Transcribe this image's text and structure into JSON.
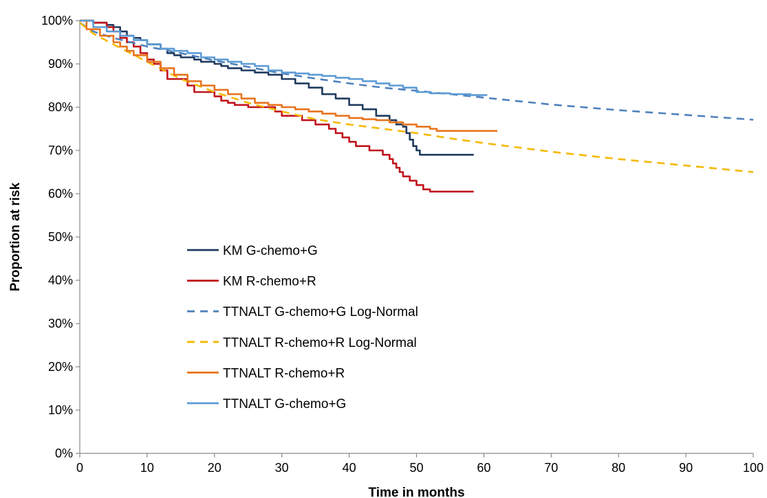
{
  "chart_data": {
    "type": "line",
    "title": "",
    "xlabel": "Time in months",
    "ylabel": "Proportion at risk",
    "xlim": [
      0,
      100
    ],
    "ylim": [
      0,
      1
    ],
    "x_ticks": [
      0,
      10,
      20,
      30,
      40,
      50,
      60,
      70,
      80,
      90,
      100
    ],
    "x_tick_labels": [
      "0",
      "10",
      "20",
      "30",
      "40",
      "50",
      "60",
      "70",
      "80",
      "90",
      "100"
    ],
    "y_ticks": [
      0,
      0.1,
      0.2,
      0.3,
      0.4,
      0.5,
      0.6,
      0.7,
      0.8,
      0.9,
      1.0
    ],
    "y_tick_labels": [
      "0%",
      "10%",
      "20%",
      "30%",
      "40%",
      "50%",
      "60%",
      "70%",
      "80%",
      "90%",
      "100%"
    ],
    "grid": false,
    "legend_position": "center-left",
    "series": [
      {
        "name": "KM G-chemo+G",
        "color": "#1f3a5f",
        "style": "step",
        "x": [
          0,
          2,
          4,
          5,
          6,
          7,
          8,
          9,
          10,
          12,
          13,
          14,
          15,
          17,
          18,
          20,
          21,
          22,
          24,
          26,
          28,
          30,
          32,
          34,
          36,
          38,
          40,
          42,
          44,
          46,
          47,
          48,
          48.5,
          49,
          49.5,
          50,
          50.5,
          52,
          55,
          58.5
        ],
        "y": [
          1.0,
          0.995,
          0.99,
          0.985,
          0.975,
          0.965,
          0.96,
          0.955,
          0.945,
          0.935,
          0.925,
          0.92,
          0.915,
          0.91,
          0.905,
          0.9,
          0.895,
          0.89,
          0.885,
          0.88,
          0.875,
          0.865,
          0.855,
          0.845,
          0.83,
          0.82,
          0.805,
          0.795,
          0.78,
          0.77,
          0.76,
          0.755,
          0.74,
          0.725,
          0.71,
          0.7,
          0.69,
          0.69,
          0.69,
          0.69
        ]
      },
      {
        "name": "KM R-chemo+R",
        "color": "#c0141c",
        "style": "step",
        "x": [
          0,
          2,
          4,
          5,
          6,
          7,
          8,
          9,
          10,
          11,
          12,
          13,
          16,
          17,
          20,
          21,
          22,
          23,
          25,
          29,
          30,
          33,
          35,
          37,
          38,
          39,
          40,
          41,
          43,
          45,
          46,
          46.5,
          47,
          47.5,
          48,
          49,
          50,
          51,
          52,
          55,
          58.5
        ],
        "y": [
          1.0,
          0.995,
          0.985,
          0.975,
          0.96,
          0.95,
          0.94,
          0.925,
          0.91,
          0.9,
          0.885,
          0.865,
          0.85,
          0.835,
          0.825,
          0.815,
          0.81,
          0.805,
          0.8,
          0.79,
          0.78,
          0.77,
          0.76,
          0.75,
          0.74,
          0.73,
          0.72,
          0.71,
          0.7,
          0.69,
          0.68,
          0.67,
          0.66,
          0.65,
          0.64,
          0.63,
          0.62,
          0.61,
          0.605,
          0.605,
          0.605
        ]
      },
      {
        "name": "TTNALT G-chemo+G Log-Normal",
        "color": "#4f81bd",
        "style": "dashed",
        "x": [
          0,
          2,
          5,
          10,
          15,
          20,
          25,
          30,
          35,
          40,
          45,
          50,
          55,
          60,
          70,
          80,
          90,
          100
        ],
        "y": [
          0.995,
          0.975,
          0.96,
          0.94,
          0.925,
          0.908,
          0.893,
          0.878,
          0.866,
          0.855,
          0.845,
          0.838,
          0.83,
          0.822,
          0.806,
          0.793,
          0.782,
          0.771
        ]
      },
      {
        "name": "TTNALT R-chemo+R Log-Normal",
        "color": "#f5b800",
        "style": "dashed",
        "x": [
          0,
          2,
          5,
          10,
          15,
          20,
          25,
          30,
          35,
          40,
          45,
          50,
          55,
          60,
          70,
          80,
          90,
          100
        ],
        "y": [
          0.995,
          0.97,
          0.945,
          0.905,
          0.865,
          0.835,
          0.81,
          0.79,
          0.772,
          0.76,
          0.75,
          0.74,
          0.728,
          0.717,
          0.697,
          0.68,
          0.665,
          0.65
        ]
      },
      {
        "name": "TTNALT R-chemo+R",
        "color": "#e8731c",
        "style": "step",
        "x": [
          0,
          1,
          3,
          5,
          6,
          7,
          8,
          10,
          12,
          14,
          16,
          18,
          20,
          22,
          24,
          26,
          28,
          30,
          32,
          34,
          36,
          38,
          40,
          42,
          44,
          46,
          48,
          50,
          52,
          53,
          55,
          62
        ],
        "y": [
          1.0,
          0.98,
          0.965,
          0.95,
          0.94,
          0.93,
          0.92,
          0.905,
          0.89,
          0.875,
          0.86,
          0.85,
          0.84,
          0.83,
          0.82,
          0.81,
          0.805,
          0.8,
          0.795,
          0.79,
          0.785,
          0.78,
          0.775,
          0.772,
          0.77,
          0.765,
          0.76,
          0.755,
          0.75,
          0.745,
          0.745,
          0.745
        ]
      },
      {
        "name": "TTNALT G-chemo+G",
        "color": "#5b9bd5",
        "style": "step",
        "x": [
          0,
          2,
          4,
          6,
          8,
          10,
          12,
          14,
          16,
          18,
          20,
          22,
          24,
          26,
          28,
          30,
          32,
          34,
          36,
          38,
          40,
          42,
          44,
          46,
          48,
          50,
          52,
          55,
          58,
          60.5
        ],
        "y": [
          1.0,
          0.985,
          0.975,
          0.965,
          0.955,
          0.945,
          0.935,
          0.93,
          0.925,
          0.915,
          0.91,
          0.905,
          0.9,
          0.895,
          0.885,
          0.88,
          0.878,
          0.875,
          0.872,
          0.868,
          0.865,
          0.86,
          0.855,
          0.85,
          0.845,
          0.835,
          0.832,
          0.83,
          0.828,
          0.828
        ]
      }
    ]
  }
}
